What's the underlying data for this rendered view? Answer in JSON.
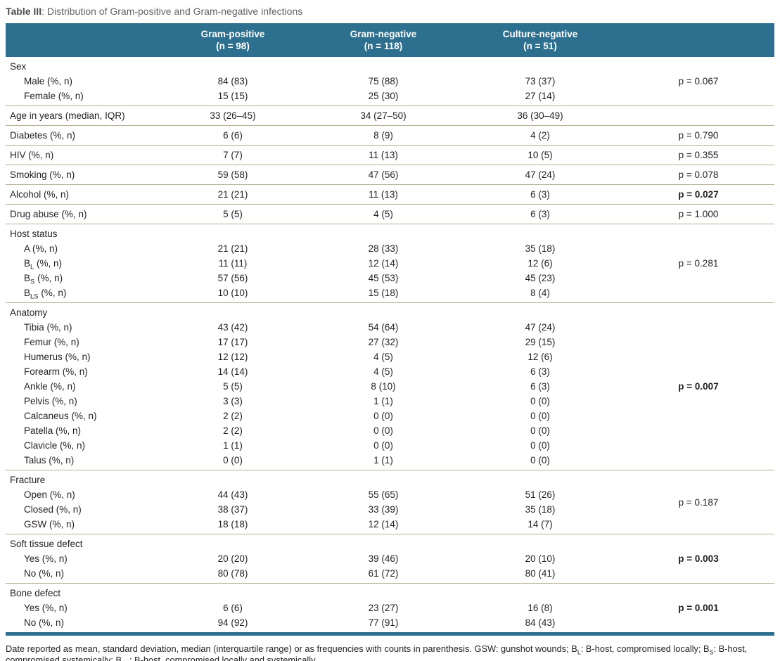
{
  "title": {
    "label": "Table III",
    "rest": ": Distribution of Gram-positive and Gram-negative infections"
  },
  "columns": [
    {
      "name": "Gram-positive",
      "n": "(n = 98)"
    },
    {
      "name": "Gram-negative",
      "n": "(n = 118)"
    },
    {
      "name": "Culture-negative",
      "n": "(n = 51)"
    }
  ],
  "sections": [
    {
      "header": "Sex",
      "rows": [
        {
          "label": "Male (%, n)",
          "values": [
            "84 (83)",
            "75 (88)",
            "73 (37)"
          ]
        },
        {
          "label": "Female (%, n)",
          "values": [
            "15 (15)",
            "25 (30)",
            "27 (14)"
          ]
        }
      ],
      "p": {
        "text": "p = 0.067",
        "bold": false,
        "row": 0,
        "span": 1
      }
    },
    {
      "header": null,
      "rows": [
        {
          "label": "Age in years (median, IQR)",
          "values": [
            "33 (26–45)",
            "34 (27–50)",
            "36 (30–49)"
          ]
        }
      ],
      "p": null
    },
    {
      "header": null,
      "rows": [
        {
          "label": "Diabetes (%, n)",
          "values": [
            "6 (6)",
            "8 (9)",
            "4 (2)"
          ]
        }
      ],
      "p": {
        "text": "p = 0.790",
        "bold": false,
        "row": 0,
        "span": 1
      }
    },
    {
      "header": null,
      "rows": [
        {
          "label": "HIV (%, n)",
          "values": [
            "7 (7)",
            "11 (13)",
            "10 (5)"
          ]
        }
      ],
      "p": {
        "text": "p = 0.355",
        "bold": false,
        "row": 0,
        "span": 1
      }
    },
    {
      "header": null,
      "rows": [
        {
          "label": "Smoking (%, n)",
          "values": [
            "59 (58)",
            "47 (56)",
            "47 (24)"
          ]
        }
      ],
      "p": {
        "text": "p = 0.078",
        "bold": false,
        "row": 0,
        "span": 1
      }
    },
    {
      "header": null,
      "rows": [
        {
          "label": "Alcohol (%, n)",
          "values": [
            "21 (21)",
            "11 (13)",
            "6 (3)"
          ]
        }
      ],
      "p": {
        "text": "p = 0.027",
        "bold": true,
        "row": 0,
        "span": 1
      }
    },
    {
      "header": null,
      "rows": [
        {
          "label": "Drug abuse (%, n)",
          "values": [
            "5 (5)",
            "4 (5)",
            "6 (3)"
          ]
        }
      ],
      "p": {
        "text": "p = 1.000",
        "bold": false,
        "row": 0,
        "span": 1
      }
    },
    {
      "header": "Host status",
      "rows": [
        {
          "label": "A (%, n)",
          "values": [
            "21 (21)",
            "28 (33)",
            "35 (18)"
          ]
        },
        {
          "label": "B~L~ (%, n)",
          "values": [
            "11 (11)",
            "12 (14)",
            "12 (6)"
          ]
        },
        {
          "label": "B~S~ (%, n)",
          "values": [
            "57 (56)",
            "45 (53)",
            "45 (23)"
          ]
        },
        {
          "label": "B~LS~ (%, n)",
          "values": [
            "10 (10)",
            "15 (18)",
            "8 (4)"
          ]
        }
      ],
      "p": {
        "text": "p = 0.281",
        "bold": false,
        "row": 1,
        "span": 1
      }
    },
    {
      "header": "Anatomy",
      "rows": [
        {
          "label": "Tibia (%, n)",
          "values": [
            "43 (42)",
            "54 (64)",
            "47 (24)"
          ]
        },
        {
          "label": "Femur (%, n)",
          "values": [
            "17 (17)",
            "27 (32)",
            "29 (15)"
          ]
        },
        {
          "label": "Humerus (%, n)",
          "values": [
            "12 (12)",
            "4 (5)",
            "12 (6)"
          ]
        },
        {
          "label": "Forearm (%, n)",
          "values": [
            "14 (14)",
            "4 (5)",
            "6 (3)"
          ]
        },
        {
          "label": "Ankle (%, n)",
          "values": [
            "5 (5)",
            "8 (10)",
            "6 (3)"
          ]
        },
        {
          "label": "Pelvis (%, n)",
          "values": [
            "3 (3)",
            "1 (1)",
            "0 (0)"
          ]
        },
        {
          "label": "Calcaneus (%, n)",
          "values": [
            "2 (2)",
            "0 (0)",
            "0 (0)"
          ]
        },
        {
          "label": "Patella (%, n)",
          "values": [
            "2 (2)",
            "0 (0)",
            "0 (0)"
          ]
        },
        {
          "label": "Clavicle (%, n)",
          "values": [
            "1 (1)",
            "0 (0)",
            "0 (0)"
          ]
        },
        {
          "label": "Talus (%, n)",
          "values": [
            "0 (0)",
            "1 (1)",
            "0 (0)"
          ]
        }
      ],
      "p": {
        "text": "p = 0.007",
        "bold": true,
        "row": 4,
        "span": 1
      }
    },
    {
      "header": "Fracture",
      "rows": [
        {
          "label": "Open (%, n)",
          "values": [
            "44 (43)",
            "55 (65)",
            "51 (26)"
          ]
        },
        {
          "label": "Closed (%, n)",
          "values": [
            "38 (37)",
            "33 (39)",
            "35 (18)"
          ]
        },
        {
          "label": "GSW (%, n)",
          "values": [
            "18 (18)",
            "12 (14)",
            "14 (7)"
          ]
        }
      ],
      "p": {
        "text": "p = 0.187",
        "bold": false,
        "row": 0,
        "span": 2
      }
    },
    {
      "header": "Soft tissue defect",
      "rows": [
        {
          "label": "Yes (%, n)",
          "values": [
            "20 (20)",
            "39 (46)",
            "20 (10)"
          ]
        },
        {
          "label": "No (%, n)",
          "values": [
            "80 (78)",
            "61 (72)",
            "80 (41)"
          ]
        }
      ],
      "p": {
        "text": "p = 0.003",
        "bold": true,
        "row": 0,
        "span": 1
      }
    },
    {
      "header": "Bone defect",
      "rows": [
        {
          "label": "Yes (%, n)",
          "values": [
            "6 (6)",
            "23 (27)",
            "16 (8)"
          ]
        },
        {
          "label": "No (%, n)",
          "values": [
            "94 (92)",
            "77 (91)",
            "84 (43)"
          ]
        }
      ],
      "p": {
        "text": "p = 0.001",
        "bold": true,
        "row": 0,
        "span": 1
      }
    }
  ],
  "footnote": "Date reported as mean, standard deviation, median (interquartile range) or as frequencies with counts in parenthesis. GSW: gunshot wounds; B~L~: B-host, compromised locally; B~S~: B-host, compromised systemically; B~LS~: B-host, compromised locally and systemically",
  "colors": {
    "header_bg": "#2d6f8e",
    "divider": "#b8af94",
    "bottom_bar": "#2d6f8e",
    "text": "#231f20"
  }
}
